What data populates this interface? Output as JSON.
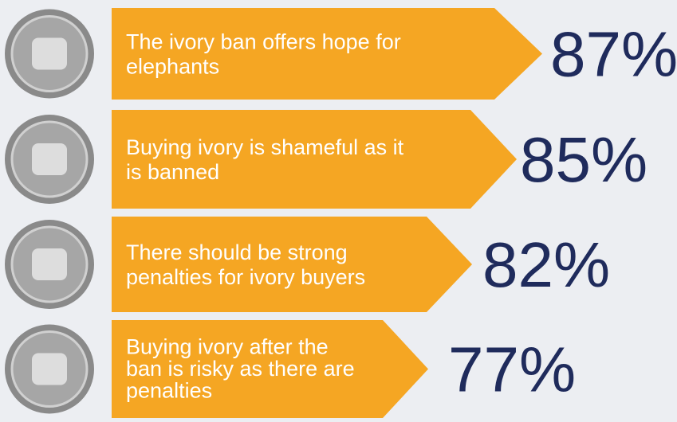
{
  "items": [
    {
      "lines": [
        "The ivory ban offers hope for",
        "elephants"
      ],
      "percent": "87%"
    },
    {
      "lines": [
        "Buying ivory is shameful as it",
        "is banned"
      ],
      "percent": "85%"
    },
    {
      "lines": [
        "There should be strong",
        "penalties for ivory buyers"
      ],
      "percent": "82%"
    },
    {
      "lines": [
        "Buying ivory after the",
        "ban is risky as there are",
        "penalties"
      ],
      "percent": "77%"
    }
  ]
}
